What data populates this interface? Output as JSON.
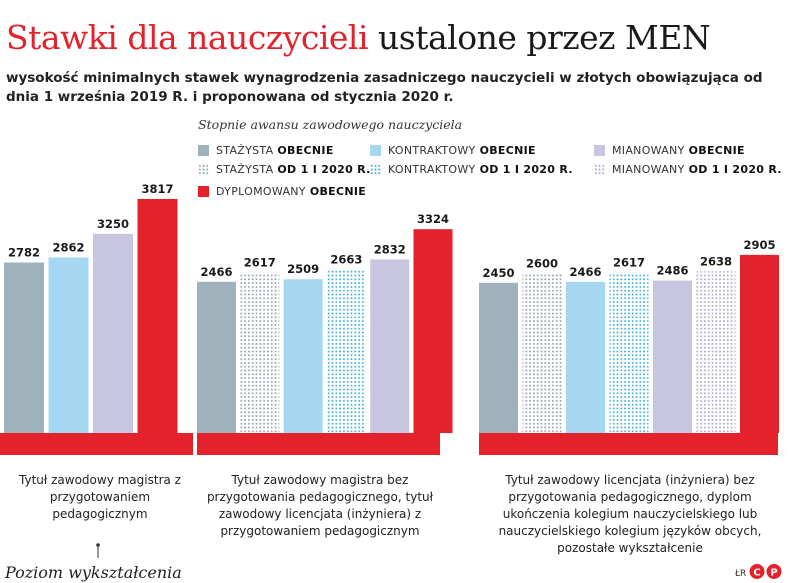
{
  "title": {
    "part1": "Stawki dla nauczycieli",
    "part2": "ustalone przez MEN"
  },
  "subtitle": "wysokość minimalnych stawek wynagrodzenia zasadniczego nauczycieli w złotych obowiązująca od dnia 1 września 2019 R. i proponowana od stycznia 2020 r.",
  "legend": {
    "title": "Stopnie awansu zawodowego nauczyciela",
    "items": [
      {
        "label": "STAŻYSTA",
        "bold": "OBECNIE",
        "color": "#9fb1bb",
        "pattern": false
      },
      {
        "label": "KONTRAKTOWY",
        "bold": "OBECNIE",
        "color": "#a6d7f1",
        "pattern": false
      },
      {
        "label": "MIANOWANY",
        "bold": "OBECNIE",
        "color": "#c8c5e0",
        "pattern": false
      },
      {
        "label": "STAŻYSTA",
        "bold": "OD 1 I 2020 R.",
        "color": "#8fa3ad",
        "pattern": true
      },
      {
        "label": "KONTRAKTOWY",
        "bold": "OD 1 I 2020 R.",
        "color": "#3cb1d6",
        "pattern": true
      },
      {
        "label": "MIANOWANY",
        "bold": "OD 1 I 2020 R.",
        "color": "#aba6d0",
        "pattern": true
      },
      {
        "label": "DYPLOMOWANY",
        "bold": "OBECNIE",
        "color": "#e4222b",
        "pattern": false
      }
    ]
  },
  "axis_title": "Poziom wykształcenia",
  "credit": "ŁR",
  "logo_text": "CP",
  "accent_color": "#e4222b",
  "chart_data": {
    "type": "bar",
    "groups": [
      {
        "caption": "Tytuł zawodowy magistra z przygotowaniem pedagogicznym",
        "bars": [
          {
            "series": "STAŻYSTA OBECNIE",
            "value": 2782
          },
          {
            "series": "KONTRAKTOWY OBECNIE",
            "value": 2862
          },
          {
            "series": "MIANOWANY OBECNIE",
            "value": 3250
          },
          {
            "series": "DYPLOMOWANY OBECNIE",
            "value": 3817
          }
        ]
      },
      {
        "caption": "Tytuł zawodowy magistra bez przygotowania pedagogicznego, tytuł zawodowy licencjata (inżyniera) z przygotowaniem pedagogicznym",
        "bars": [
          {
            "series": "STAŻYSTA OBECNIE",
            "value": 2466
          },
          {
            "series": "STAŻYSTA OD 1 I 2020 R.",
            "value": 2617
          },
          {
            "series": "KONTRAKTOWY OBECNIE",
            "value": 2509
          },
          {
            "series": "KONTRAKTOWY OD 1 I 2020 R.",
            "value": 2663
          },
          {
            "series": "MIANOWANY OBECNIE",
            "value": 2832
          },
          {
            "series": "DYPLOMOWANY OBECNIE",
            "value": 3324
          }
        ]
      },
      {
        "caption": "Tytuł zawodowy licencjata (inżyniera) bez przygotowania pedagogicznego, dyplom ukończenia kolegium nauczycielskiego lub nauczycielskiego kolegium języków obcych, pozostałe wykształcenie",
        "bars": [
          {
            "series": "STAŻYSTA OBECNIE",
            "value": 2450
          },
          {
            "series": "STAŻYSTA OD 1 I 2020 R.",
            "value": 2600
          },
          {
            "series": "KONTRAKTOWY OBECNIE",
            "value": 2466
          },
          {
            "series": "KONTRAKTOWY OD 1 I 2020 R.",
            "value": 2617
          },
          {
            "series": "MIANOWANY OBECNIE",
            "value": 2486
          },
          {
            "series": "MIANOWANY OD 1 I 2020 R.",
            "value": 2638
          },
          {
            "series": "DYPLOMOWANY OBECNIE",
            "value": 2905
          }
        ]
      }
    ],
    "ylim": [
      0,
      3817
    ]
  }
}
